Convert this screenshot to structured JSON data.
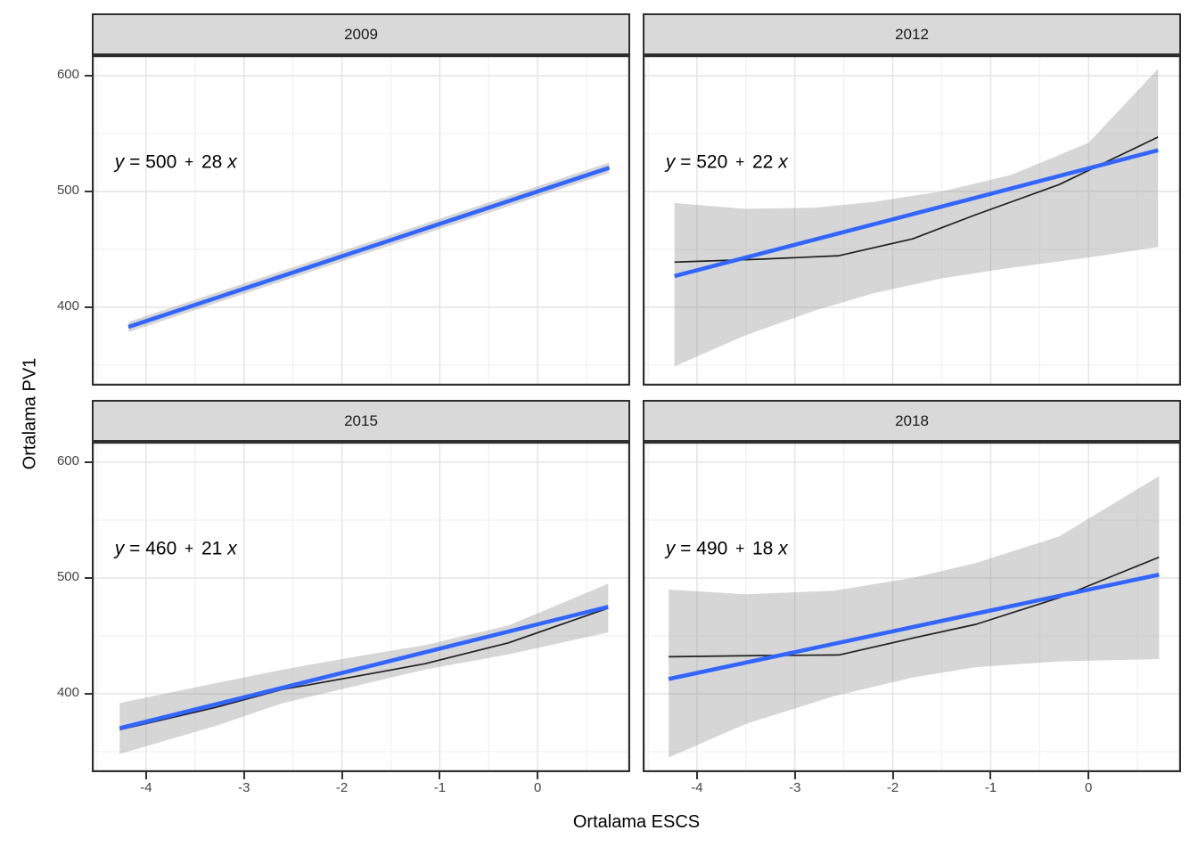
{
  "figure": {
    "x_axis_title": "Ortalama ESCS",
    "y_axis_title": "Ortalama PV1",
    "colors": {
      "regression_line": "#3366FF",
      "observed_line": "#202020",
      "ribbon_fill": "#999999",
      "ribbon_opacity": 0.4,
      "strip_background": "#D9D9D9",
      "panel_border": "#2E2E2E",
      "grid_major": "#E3E3E3",
      "grid_minor": "#F1F1F1",
      "tick_text": "#444444",
      "title_text": "#000000"
    }
  },
  "chart_data": {
    "type": "line",
    "facet_by": "year",
    "title": "",
    "xlabel": "Ortalama ESCS",
    "ylabel": "Ortalama PV1",
    "grid": true,
    "legend": "none",
    "x_domain": [
      -4.555,
      0.945
    ],
    "y_domain": [
      332.3,
      617.7
    ],
    "x_ticks": [
      {
        "value": -4,
        "label": "-4"
      },
      {
        "value": -3,
        "label": "-3"
      },
      {
        "value": -2,
        "label": "-2"
      },
      {
        "value": -1,
        "label": "-1"
      },
      {
        "value": 0,
        "label": "0"
      }
    ],
    "y_ticks": [
      {
        "value": 600,
        "label": "600"
      },
      {
        "value": 500,
        "label": "500"
      },
      {
        "value": 400,
        "label": "400"
      }
    ],
    "x_minor_ticks": [
      -4.5,
      -3.5,
      -2.5,
      -1.5,
      -0.5,
      0.5
    ],
    "y_minor_ticks": [
      350,
      450,
      550
    ],
    "facets": [
      {
        "label": "2009",
        "equation_text": "y = 500 + 28 x",
        "equation": {
          "var_y": "y",
          "equals": "=",
          "intercept": "500",
          "plus": "+",
          "slope": "28",
          "var_x": "x"
        },
        "regression": {
          "intercept": 500,
          "slope": 28,
          "x_start": -4.18,
          "x_end": 0.73
        },
        "observed_line": [
          [
            -4.18,
            382.5
          ],
          [
            0.73,
            521
          ]
        ],
        "ribbon_upper": [
          [
            -4.18,
            387.5
          ],
          [
            0.73,
            525
          ]
        ],
        "ribbon_lower": [
          [
            -4.18,
            378.5
          ],
          [
            0.73,
            516
          ]
        ],
        "annotation_anchor": {
          "x": -4.32,
          "y": 525
        }
      },
      {
        "label": "2012",
        "equation_text": "y = 520 + 22 x",
        "equation": {
          "var_y": "y",
          "equals": "=",
          "intercept": "520",
          "plus": "+",
          "slope": "22",
          "var_x": "x"
        },
        "regression": {
          "intercept": 520,
          "slope": 22,
          "x_start": -4.23,
          "x_end": 0.71
        },
        "observed_line": [
          [
            -4.23,
            439
          ],
          [
            -3.35,
            441.5
          ],
          [
            -2.55,
            444.5
          ],
          [
            -1.8,
            459
          ],
          [
            -1.15,
            480
          ],
          [
            -0.3,
            506
          ],
          [
            0.71,
            547
          ]
        ],
        "ribbon_upper": [
          [
            -4.23,
            490
          ],
          [
            -3.5,
            485
          ],
          [
            -2.8,
            486
          ],
          [
            -2.2,
            491
          ],
          [
            -1.5,
            500
          ],
          [
            -0.8,
            514
          ],
          [
            0,
            542
          ],
          [
            0.71,
            606
          ]
        ],
        "ribbon_lower": [
          [
            -4.23,
            349
          ],
          [
            -3.5,
            376
          ],
          [
            -2.8,
            397
          ],
          [
            -2.2,
            412
          ],
          [
            -1.5,
            425
          ],
          [
            -0.8,
            434
          ],
          [
            0,
            443
          ],
          [
            0.71,
            452
          ]
        ],
        "annotation_anchor": {
          "x": -4.32,
          "y": 525
        }
      },
      {
        "label": "2015",
        "equation_text": "y = 460 + 21 x",
        "equation": {
          "var_y": "y",
          "equals": "=",
          "intercept": "460",
          "plus": "+",
          "slope": "21",
          "var_x": "x"
        },
        "regression": {
          "intercept": 460,
          "slope": 21,
          "x_start": -4.27,
          "x_end": 0.72
        },
        "observed_line": [
          [
            -4.27,
            369
          ],
          [
            -3.3,
            388
          ],
          [
            -2.6,
            404
          ],
          [
            -2.35,
            407.5
          ],
          [
            -1.6,
            419
          ],
          [
            -1.15,
            426
          ],
          [
            -0.3,
            444
          ],
          [
            0.72,
            474
          ]
        ],
        "ribbon_upper": [
          [
            -4.27,
            392
          ],
          [
            -3.3,
            409
          ],
          [
            -2.6,
            421
          ],
          [
            -1.8,
            433
          ],
          [
            -1.15,
            442
          ],
          [
            -0.3,
            459
          ],
          [
            0.72,
            495
          ]
        ],
        "ribbon_lower": [
          [
            -4.27,
            348
          ],
          [
            -3.3,
            372
          ],
          [
            -2.6,
            392
          ],
          [
            -1.8,
            408
          ],
          [
            -1.15,
            421
          ],
          [
            -0.3,
            434
          ],
          [
            0.72,
            453
          ]
        ],
        "annotation_anchor": {
          "x": -4.32,
          "y": 525
        }
      },
      {
        "label": "2018",
        "equation_text": "y = 490 + 18 x",
        "equation": {
          "var_y": "y",
          "equals": "=",
          "intercept": "490",
          "plus": "+",
          "slope": "18",
          "var_x": "x"
        },
        "regression": {
          "intercept": 490,
          "slope": 18,
          "x_start": -4.29,
          "x_end": 0.72
        },
        "observed_line": [
          [
            -4.29,
            432
          ],
          [
            -3.4,
            433
          ],
          [
            -2.55,
            433.5
          ],
          [
            -1.8,
            448
          ],
          [
            -1.15,
            460
          ],
          [
            -0.3,
            483
          ],
          [
            0.72,
            518
          ]
        ],
        "ribbon_upper": [
          [
            -4.29,
            490
          ],
          [
            -3.5,
            486
          ],
          [
            -2.6,
            489
          ],
          [
            -1.8,
            500
          ],
          [
            -1.15,
            513
          ],
          [
            -0.3,
            536
          ],
          [
            0.72,
            588
          ]
        ],
        "ribbon_lower": [
          [
            -4.29,
            345
          ],
          [
            -3.5,
            374
          ],
          [
            -2.6,
            398
          ],
          [
            -1.8,
            414
          ],
          [
            -1.15,
            423
          ],
          [
            -0.3,
            428
          ],
          [
            0.72,
            430
          ]
        ],
        "annotation_anchor": {
          "x": -4.32,
          "y": 525
        }
      }
    ]
  }
}
